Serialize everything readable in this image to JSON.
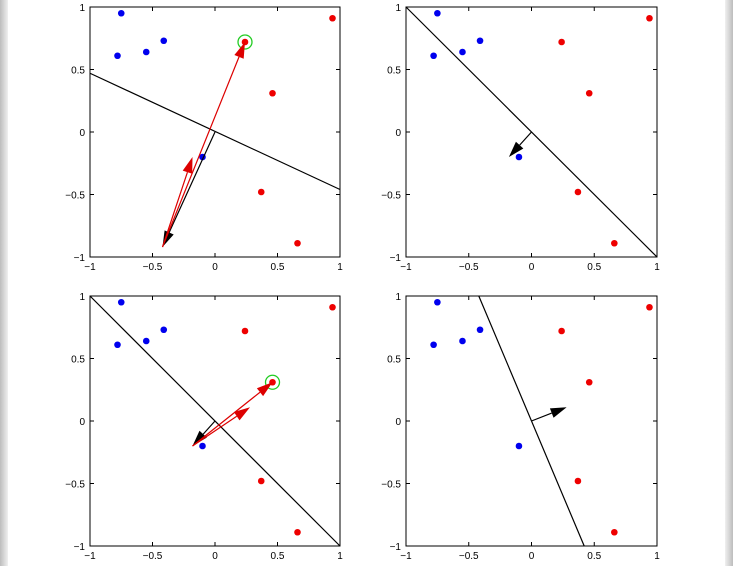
{
  "chart_data": [
    {
      "type": "scatter",
      "title": "",
      "xlabel": "",
      "ylabel": "",
      "xlim": [
        -1,
        1
      ],
      "ylim": [
        -1,
        1
      ],
      "xticks": [
        -1,
        -0.5,
        0,
        0.5,
        1
      ],
      "yticks": [
        -1,
        -0.5,
        0,
        0.5,
        1
      ],
      "xtick_labels": [
        "−1",
        "−0.5",
        "0",
        "0.5",
        "1"
      ],
      "ytick_labels": [
        "−1",
        "−0.5",
        "0",
        "0.5",
        "1"
      ],
      "grid": false,
      "series": [
        {
          "color": "#0000ee",
          "points": [
            [
              -0.75,
              0.95
            ],
            [
              -0.78,
              0.61
            ],
            [
              -0.55,
              0.64
            ],
            [
              -0.41,
              0.73
            ],
            [
              -0.1,
              -0.2
            ]
          ]
        },
        {
          "color": "#ee0000",
          "points": [
            [
              0.94,
              0.91
            ],
            [
              0.24,
              0.72
            ],
            [
              0.46,
              0.31
            ],
            [
              0.37,
              -0.48
            ],
            [
              0.66,
              -0.89
            ]
          ]
        }
      ],
      "boundary": [
        [
          -1,
          0.47
        ],
        [
          1,
          -0.46
        ]
      ],
      "highlighted_point": [
        0.24,
        0.72
      ],
      "arrows": [
        {
          "color": "#000000",
          "from": [
            0,
            0
          ],
          "to": [
            -0.42,
            -0.92
          ]
        },
        {
          "color": "#dd0000",
          "from": [
            -0.42,
            -0.92
          ],
          "to": [
            0.24,
            0.72
          ]
        },
        {
          "color": "#dd0000",
          "from": [
            -0.42,
            -0.92
          ],
          "to": [
            -0.18,
            -0.2
          ]
        }
      ]
    },
    {
      "type": "scatter",
      "title": "",
      "xlabel": "",
      "ylabel": "",
      "xlim": [
        -1,
        1
      ],
      "ylim": [
        -1,
        1
      ],
      "xticks": [
        -1,
        -0.5,
        0,
        0.5,
        1
      ],
      "yticks": [
        -1,
        -0.5,
        0,
        0.5,
        1
      ],
      "xtick_labels": [
        "−1",
        "−0.5",
        "0",
        "0.5",
        "1"
      ],
      "ytick_labels": [
        "−1",
        "−0.5",
        "0",
        "0.5",
        "1"
      ],
      "grid": false,
      "series": [
        {
          "color": "#0000ee",
          "points": [
            [
              -0.75,
              0.95
            ],
            [
              -0.78,
              0.61
            ],
            [
              -0.55,
              0.64
            ],
            [
              -0.41,
              0.73
            ],
            [
              -0.1,
              -0.2
            ]
          ]
        },
        {
          "color": "#ee0000",
          "points": [
            [
              0.94,
              0.91
            ],
            [
              0.24,
              0.72
            ],
            [
              0.46,
              0.31
            ],
            [
              0.37,
              -0.48
            ],
            [
              0.66,
              -0.89
            ]
          ]
        }
      ],
      "boundary": [
        [
          -1,
          1
        ],
        [
          1,
          -1
        ]
      ],
      "arrows": [
        {
          "color": "#000000",
          "from": [
            0,
            0
          ],
          "to": [
            -0.18,
            -0.2
          ]
        }
      ]
    },
    {
      "type": "scatter",
      "title": "",
      "xlabel": "",
      "ylabel": "",
      "xlim": [
        -1,
        1
      ],
      "ylim": [
        -1,
        1
      ],
      "xticks": [
        -1,
        -0.5,
        0,
        0.5,
        1
      ],
      "yticks": [
        -1,
        -0.5,
        0,
        0.5,
        1
      ],
      "xtick_labels": [
        "−1",
        "−0.5",
        "0",
        "0.5",
        "1"
      ],
      "ytick_labels": [
        "−1",
        "−0.5",
        "0",
        "0.5",
        "1"
      ],
      "grid": false,
      "series": [
        {
          "color": "#0000ee",
          "points": [
            [
              -0.75,
              0.95
            ],
            [
              -0.78,
              0.61
            ],
            [
              -0.55,
              0.64
            ],
            [
              -0.41,
              0.73
            ],
            [
              -0.1,
              -0.2
            ]
          ]
        },
        {
          "color": "#ee0000",
          "points": [
            [
              0.94,
              0.91
            ],
            [
              0.24,
              0.72
            ],
            [
              0.46,
              0.31
            ],
            [
              0.37,
              -0.48
            ],
            [
              0.66,
              -0.89
            ]
          ]
        }
      ],
      "boundary": [
        [
          -1,
          1
        ],
        [
          1,
          -1
        ]
      ],
      "highlighted_point": [
        0.46,
        0.31
      ],
      "arrows": [
        {
          "color": "#000000",
          "from": [
            0,
            0
          ],
          "to": [
            -0.18,
            -0.2
          ]
        },
        {
          "color": "#dd0000",
          "from": [
            -0.18,
            -0.2
          ],
          "to": [
            0.46,
            0.31
          ]
        },
        {
          "color": "#dd0000",
          "from": [
            -0.18,
            -0.2
          ],
          "to": [
            0.28,
            0.11
          ]
        }
      ]
    },
    {
      "type": "scatter",
      "title": "",
      "xlabel": "",
      "ylabel": "",
      "xlim": [
        -1,
        1
      ],
      "ylim": [
        -1,
        1
      ],
      "xticks": [
        -1,
        -0.5,
        0,
        0.5,
        1
      ],
      "yticks": [
        -1,
        -0.5,
        0,
        0.5,
        1
      ],
      "xtick_labels": [
        "−1",
        "−0.5",
        "0",
        "0.5",
        "1"
      ],
      "ytick_labels": [
        "−1",
        "−0.5",
        "0",
        "0.5",
        "1"
      ],
      "grid": false,
      "series": [
        {
          "color": "#0000ee",
          "points": [
            [
              -0.75,
              0.95
            ],
            [
              -0.78,
              0.61
            ],
            [
              -0.55,
              0.64
            ],
            [
              -0.41,
              0.73
            ],
            [
              -0.1,
              -0.2
            ]
          ]
        },
        {
          "color": "#ee0000",
          "points": [
            [
              0.94,
              0.91
            ],
            [
              0.24,
              0.72
            ],
            [
              0.46,
              0.31
            ],
            [
              0.37,
              -0.48
            ],
            [
              0.66,
              -0.89
            ]
          ]
        }
      ],
      "boundary": [
        [
          -0.42,
          1
        ],
        [
          0.42,
          -1
        ]
      ],
      "arrows": [
        {
          "color": "#000000",
          "from": [
            0,
            0
          ],
          "to": [
            0.28,
            0.11
          ]
        }
      ]
    }
  ]
}
